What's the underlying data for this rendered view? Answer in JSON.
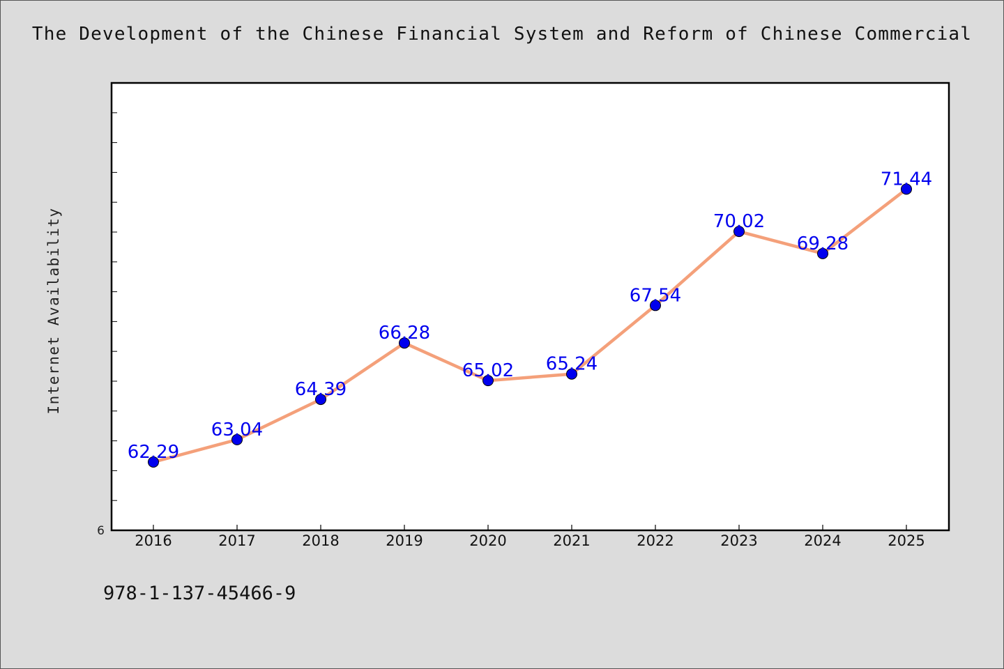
{
  "chart_data": {
    "type": "line",
    "title": "The Development of the Chinese Financial System and Reform of Chinese Commercial",
    "xlabel": "",
    "ylabel": "Internet Availability",
    "categories": [
      "2016",
      "2017",
      "2018",
      "2019",
      "2020",
      "2021",
      "2022",
      "2023",
      "2024",
      "2025"
    ],
    "series": [
      {
        "values": [
          62.29,
          63.04,
          64.39,
          66.28,
          65.02,
          65.24,
          67.54,
          70.02,
          69.28,
          71.44
        ],
        "labels": [
          "62.29",
          "63.04",
          "64.39",
          "66.28",
          "65.02",
          "65.24",
          "67.54",
          "70.02",
          "69.28",
          "71.44"
        ],
        "color": "#f4a07a",
        "marker_color": "#0000ee"
      }
    ],
    "ylim": [
      60,
      75
    ],
    "y_tick_label": "6",
    "grid": false,
    "legend": "none",
    "label_color": "#0000ee"
  },
  "footer": {
    "isbn": "978-1-137-45466-9"
  }
}
